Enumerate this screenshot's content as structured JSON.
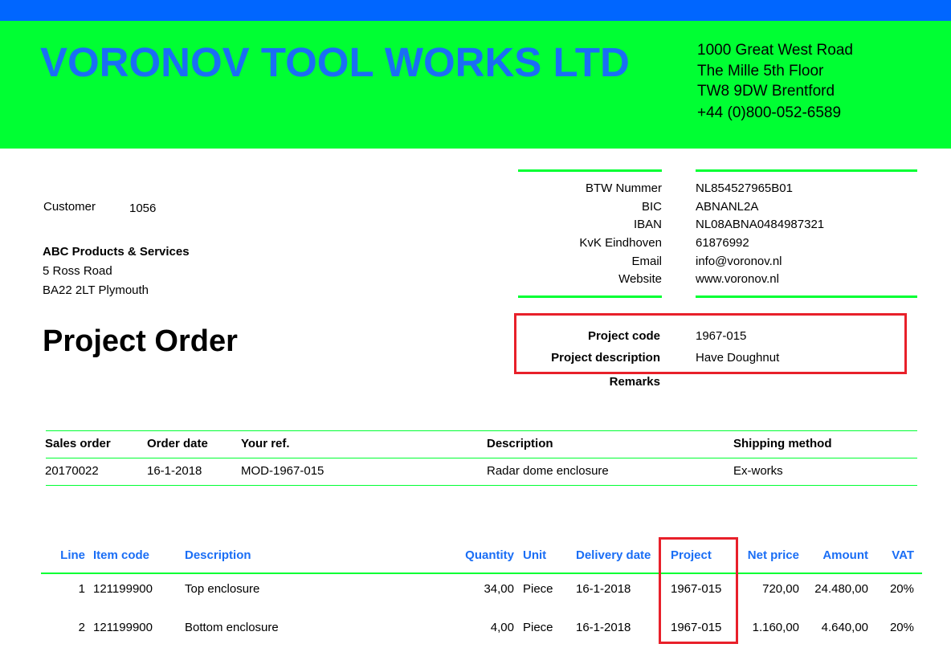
{
  "colors": {
    "top_bar": "#0066ff",
    "header_bg": "#00ff33",
    "accent_blue": "#1a6ef5",
    "highlight_red": "#e8202a"
  },
  "company": {
    "name": "VORONOV TOOL WORKS LTD",
    "address": [
      "1000 Great West Road",
      "The Mille 5th Floor",
      "TW8 9DW Brentford",
      "+44 (0)800-052-6589"
    ]
  },
  "company_info": [
    {
      "label": "BTW Nummer",
      "value": "NL854527965B01"
    },
    {
      "label": "BIC",
      "value": "ABNANL2A"
    },
    {
      "label": "IBAN",
      "value": "NL08ABNA0484987321"
    },
    {
      "label": "KvK Eindhoven",
      "value": "61876992"
    },
    {
      "label": "Email",
      "value": "info@voronov.nl"
    },
    {
      "label": "Website",
      "value": "www.voronov.nl"
    }
  ],
  "customer": {
    "label": "Customer",
    "number": "1056",
    "name": "ABC Products & Services",
    "street": "5 Ross Road",
    "city": "BA22 2LT  Plymouth"
  },
  "document_title": "Project Order",
  "project": {
    "code_label": "Project code",
    "code": "1967-015",
    "desc_label": "Project description",
    "desc": "Have Doughnut",
    "remarks_label": "Remarks"
  },
  "order_table": {
    "headers": [
      "Sales order",
      "Order date",
      "Your ref.",
      "Description",
      "Shipping method"
    ],
    "row": [
      "20170022",
      "16-1-2018",
      "MOD-1967-015",
      "Radar dome enclosure",
      "Ex-works"
    ]
  },
  "lines_table": {
    "headers": [
      "Line",
      "Item code",
      "Description",
      "Quantity",
      "Unit",
      "Delivery date",
      "Project",
      "Net price",
      "Amount",
      "VAT"
    ],
    "rows": [
      [
        "1",
        "121199900",
        "Top enclosure",
        "34,00",
        "Piece",
        "16-1-2018",
        "1967-015",
        "720,00",
        "24.480,00",
        "20%"
      ],
      [
        "2",
        "121199900",
        "Bottom enclosure",
        "4,00",
        "Piece",
        "16-1-2018",
        "1967-015",
        "1.160,00",
        "4.640,00",
        "20%"
      ]
    ]
  }
}
